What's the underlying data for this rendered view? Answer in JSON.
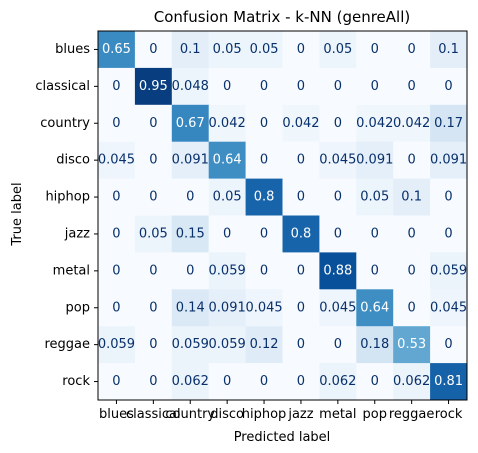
{
  "chart_data": {
    "type": "heatmap",
    "title": "Confusion Matrix - k-NN (genreAll)",
    "xlabel": "Predicted label",
    "ylabel": "True label",
    "x_categories": [
      "blues",
      "classical",
      "country",
      "disco",
      "hiphop",
      "jazz",
      "metal",
      "pop",
      "reggae",
      "rock"
    ],
    "y_categories": [
      "blues",
      "classical",
      "country",
      "disco",
      "hiphop",
      "jazz",
      "metal",
      "pop",
      "reggae",
      "rock"
    ],
    "value_range": [
      0,
      1
    ],
    "colormap": "Blues",
    "cell_labels": [
      [
        "0.65",
        "0",
        "0.1",
        "0.05",
        "0.05",
        "0",
        "0.05",
        "0",
        "0",
        "0.1"
      ],
      [
        "0",
        "0.95",
        "0.048",
        "0",
        "0",
        "0",
        "0",
        "0",
        "0",
        "0"
      ],
      [
        "0",
        "0",
        "0.67",
        "0.042",
        "0",
        "0.042",
        "0",
        "0.042",
        "0.042",
        "0.17"
      ],
      [
        "0.045",
        "0",
        "0.091",
        "0.64",
        "0",
        "0",
        "0.045",
        "0.091",
        "0",
        "0.091"
      ],
      [
        "0",
        "0",
        "0",
        "0.05",
        "0.8",
        "0",
        "0",
        "0.05",
        "0.1",
        "0"
      ],
      [
        "0",
        "0.05",
        "0.15",
        "0",
        "0",
        "0.8",
        "0",
        "0",
        "0",
        "0"
      ],
      [
        "0",
        "0",
        "0",
        "0.059",
        "0",
        "0",
        "0.88",
        "0",
        "0",
        "0.059"
      ],
      [
        "0",
        "0",
        "0.14",
        "0.091",
        "0.045",
        "0",
        "0.045",
        "0.64",
        "0",
        "0.045"
      ],
      [
        "0.059",
        "0",
        "0.059",
        "0.059",
        "0.12",
        "0",
        "0",
        "0.18",
        "0.53",
        "0"
      ],
      [
        "0",
        "0",
        "0.062",
        "0",
        "0",
        "0",
        "0.062",
        "0",
        "0.062",
        "0.81"
      ]
    ]
  }
}
